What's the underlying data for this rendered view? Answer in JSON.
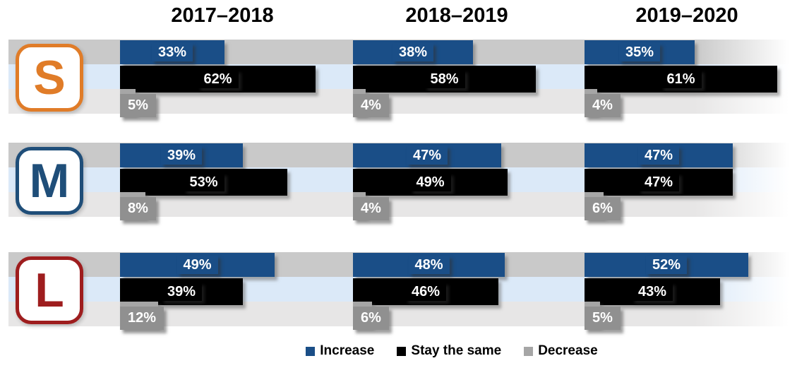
{
  "colors": {
    "increase": "#1A4E87",
    "stay_the_same": "#000000",
    "decrease_bar": "#A6A6A6",
    "decrease_label_bg": "#909090",
    "band_top": "#C9C9C9",
    "band_middle": "#DBE9F8",
    "band_bottom": "#E7E6E6"
  },
  "legend": [
    {
      "label": "Increase",
      "color": "#1A4E87"
    },
    {
      "label": "Stay the same",
      "color": "#000000"
    },
    {
      "label": "Decrease",
      "color": "#A6A6A6"
    }
  ],
  "chart_data": {
    "type": "bar",
    "orientation": "horizontal",
    "unit": "%",
    "xlim": [
      0,
      100
    ],
    "grid": false,
    "legend_position": "bottom",
    "column_headers": [
      "2017–2018",
      "2018–2019",
      "2019–2020"
    ],
    "legend_labels": [
      "Increase",
      "Stay the same",
      "Decrease"
    ],
    "row_groups": [
      {
        "group": "S",
        "color": "#E07C28",
        "series": [
          {
            "name": "Increase",
            "values": [
              33,
              38,
              35
            ]
          },
          {
            "name": "Stay the same",
            "values": [
              62,
              58,
              61
            ]
          },
          {
            "name": "Decrease",
            "values": [
              5,
              4,
              4
            ]
          }
        ]
      },
      {
        "group": "M",
        "color": "#1F4E79",
        "series": [
          {
            "name": "Increase",
            "values": [
              39,
              47,
              47
            ]
          },
          {
            "name": "Stay the same",
            "values": [
              53,
              49,
              47
            ]
          },
          {
            "name": "Decrease",
            "values": [
              8,
              4,
              6
            ]
          }
        ]
      },
      {
        "group": "L",
        "color": "#9E1D1E",
        "series": [
          {
            "name": "Increase",
            "values": [
              49,
              48,
              52
            ]
          },
          {
            "name": "Stay the same",
            "values": [
              39,
              46,
              43
            ]
          },
          {
            "name": "Decrease",
            "values": [
              12,
              6,
              5
            ]
          }
        ]
      }
    ]
  }
}
